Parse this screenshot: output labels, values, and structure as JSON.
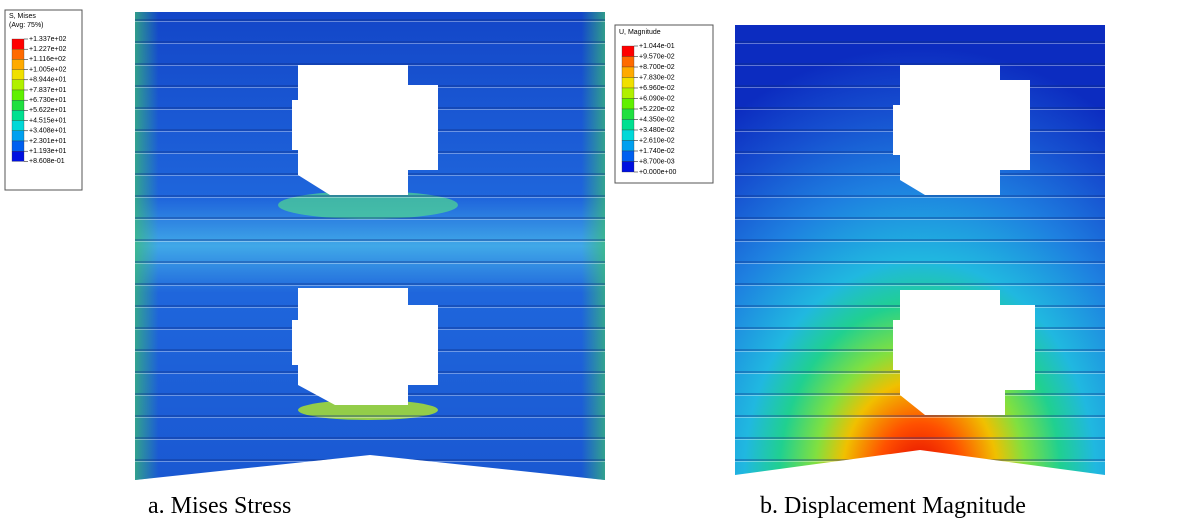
{
  "panels": [
    {
      "legend": {
        "title": [
          "S, Mises",
          "(Avg: 75%)"
        ],
        "labels": [
          "+1.337e+02",
          "+1.227e+02",
          "+1.116e+02",
          "+1.005e+02",
          "+8.944e+01",
          "+7.837e+01",
          "+6.730e+01",
          "+5.622e+01",
          "+4.515e+01",
          "+3.408e+01",
          "+2.301e+01",
          "+1.193e+01",
          "+8.608e-01"
        ]
      },
      "caption": "a. Mises Stress"
    },
    {
      "legend": {
        "title": [
          "U, Magnitude"
        ],
        "labels": [
          "+1.044e-01",
          "+9.570e-02",
          "+8.700e-02",
          "+7.830e-02",
          "+6.960e-02",
          "+6.090e-02",
          "+5.220e-02",
          "+4.350e-02",
          "+3.480e-02",
          "+2.610e-02",
          "+1.740e-02",
          "+8.700e-03",
          "+0.000e+00"
        ]
      },
      "caption": "b. Displacement Magnitude"
    }
  ]
}
